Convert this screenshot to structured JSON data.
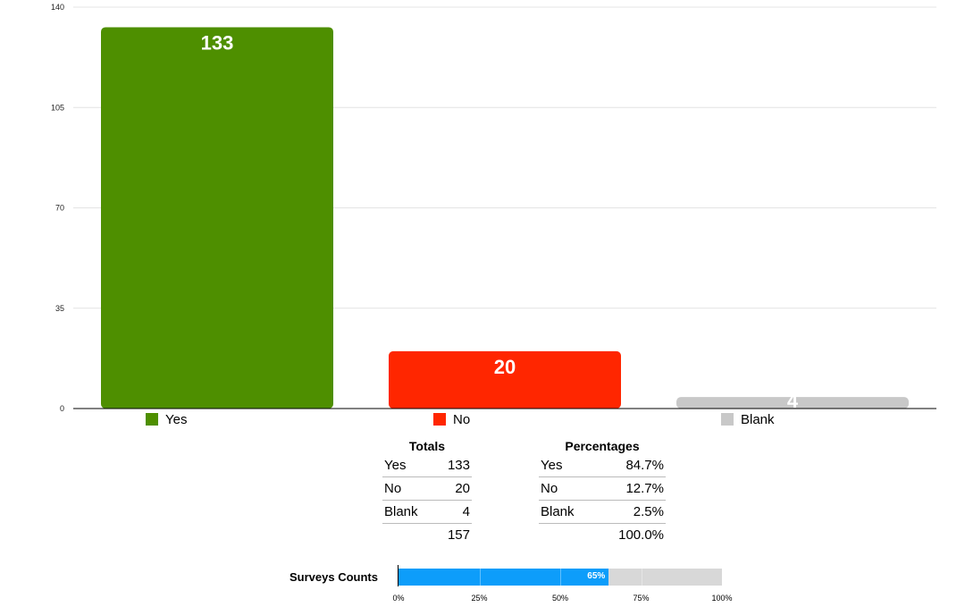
{
  "chart_data": [
    {
      "type": "bar",
      "categories": [
        "Yes",
        "No",
        "Blank"
      ],
      "values": [
        133,
        20,
        4
      ],
      "data_labels": [
        "133",
        "20",
        "4"
      ],
      "colors": [
        "#4e8f00",
        "#ff2600",
        "#c8c8c8"
      ],
      "ylim": [
        0,
        140
      ],
      "yticks": [
        "0",
        "35",
        "70",
        "105",
        "140"
      ],
      "grid": true,
      "legend": {
        "position": "bottom",
        "entries": [
          "Yes",
          "No",
          "Blank"
        ]
      }
    },
    {
      "type": "bar",
      "orientation": "horizontal",
      "label": "Surveys Counts",
      "value": 65,
      "value_label": "65%",
      "xlim": [
        0,
        100
      ],
      "xticks": [
        "0%",
        "25%",
        "50%",
        "75%",
        "100%"
      ],
      "fill_color": "#0d9dfa",
      "track_color": "#d8d8d8"
    }
  ],
  "totals": {
    "title": "Totals",
    "rows": [
      {
        "label": "Yes",
        "value": "133"
      },
      {
        "label": "No",
        "value": "20"
      },
      {
        "label": "Blank",
        "value": "4"
      }
    ],
    "total": "157"
  },
  "percentages": {
    "title": "Percentages",
    "rows": [
      {
        "label": "Yes",
        "value": "84.7%"
      },
      {
        "label": "No",
        "value": "12.7%"
      },
      {
        "label": "Blank",
        "value": "2.5%"
      }
    ],
    "total": "100.0%"
  }
}
